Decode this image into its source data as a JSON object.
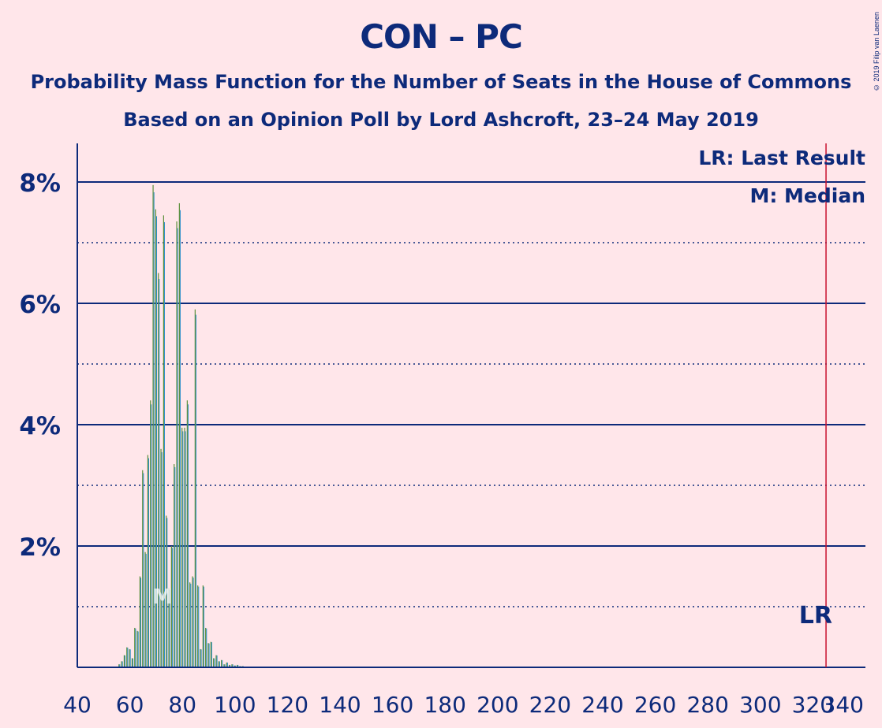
{
  "title": "CON – PC",
  "subtitle1": "Probability Mass Function for the Number of Seats in the House of Commons",
  "subtitle2": "Based on an Opinion Poll by Lord Ashcroft, 23–24 May 2019",
  "copyright": "© 2019 Filip van Laenen",
  "colors": {
    "background": "#FFE6EA",
    "text": "#0D2A7A",
    "bar_primary": "#5B8F3A",
    "bar_secondary": "#2E8FC9",
    "last_result_line": "#C8102E"
  },
  "chart_data": {
    "type": "bar",
    "xlabel": "",
    "ylabel": "",
    "xlim": [
      40,
      340
    ],
    "ylim": [
      0,
      8.6
    ],
    "x_ticks": [
      "40",
      "60",
      "80",
      "100",
      "120",
      "140",
      "160",
      "180",
      "200",
      "220",
      "240",
      "260",
      "280",
      "300",
      "320",
      "340"
    ],
    "y_ticks": [
      {
        "value": 2,
        "label": "2%"
      },
      {
        "value": 4,
        "label": "4%"
      },
      {
        "value": 6,
        "label": "6%"
      },
      {
        "value": 8,
        "label": "8%"
      }
    ],
    "dotted_gridlines": [
      1,
      3,
      5,
      7
    ],
    "legend": {
      "position": "top-right",
      "last_result": "LR: Last Result",
      "median": "M: Median"
    },
    "last_result": {
      "seats": 325,
      "label": "LR"
    },
    "median": {
      "seats": 73,
      "label": "M"
    },
    "bars": [
      {
        "x": 56,
        "y": 0.05
      },
      {
        "x": 57,
        "y": 0.1
      },
      {
        "x": 58,
        "y": 0.2
      },
      {
        "x": 59,
        "y": 0.33
      },
      {
        "x": 60,
        "y": 0.3
      },
      {
        "x": 61,
        "y": 0.15
      },
      {
        "x": 62,
        "y": 0.65
      },
      {
        "x": 63,
        "y": 0.6
      },
      {
        "x": 64,
        "y": 1.5
      },
      {
        "x": 65,
        "y": 3.25
      },
      {
        "x": 66,
        "y": 1.9
      },
      {
        "x": 67,
        "y": 3.5
      },
      {
        "x": 68,
        "y": 4.4
      },
      {
        "x": 69,
        "y": 7.95
      },
      {
        "x": 70,
        "y": 7.55
      },
      {
        "x": 71,
        "y": 6.5
      },
      {
        "x": 72,
        "y": 3.6
      },
      {
        "x": 73,
        "y": 7.45
      },
      {
        "x": 74,
        "y": 2.5
      },
      {
        "x": 75,
        "y": 1.3
      },
      {
        "x": 76,
        "y": 2.0
      },
      {
        "x": 77,
        "y": 3.35
      },
      {
        "x": 78,
        "y": 7.35
      },
      {
        "x": 79,
        "y": 7.65
      },
      {
        "x": 80,
        "y": 3.95
      },
      {
        "x": 81,
        "y": 3.95
      },
      {
        "x": 82,
        "y": 4.4
      },
      {
        "x": 83,
        "y": 1.4
      },
      {
        "x": 84,
        "y": 1.5
      },
      {
        "x": 85,
        "y": 5.9
      },
      {
        "x": 86,
        "y": 1.35
      },
      {
        "x": 87,
        "y": 0.3
      },
      {
        "x": 88,
        "y": 1.35
      },
      {
        "x": 89,
        "y": 0.65
      },
      {
        "x": 90,
        "y": 0.4
      },
      {
        "x": 91,
        "y": 0.42
      },
      {
        "x": 92,
        "y": 0.15
      },
      {
        "x": 93,
        "y": 0.2
      },
      {
        "x": 94,
        "y": 0.1
      },
      {
        "x": 95,
        "y": 0.12
      },
      {
        "x": 96,
        "y": 0.05
      },
      {
        "x": 97,
        "y": 0.08
      },
      {
        "x": 98,
        "y": 0.04
      },
      {
        "x": 99,
        "y": 0.05
      },
      {
        "x": 100,
        "y": 0.03
      },
      {
        "x": 101,
        "y": 0.04
      },
      {
        "x": 102,
        "y": 0.02
      },
      {
        "x": 103,
        "y": 0.02
      }
    ]
  }
}
